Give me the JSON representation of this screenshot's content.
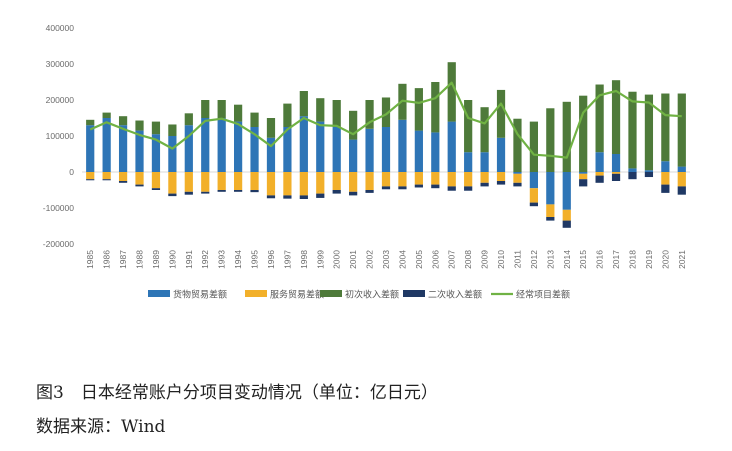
{
  "caption": {
    "title": "图3　日本经常账户分项目变动情况（单位：亿日元）",
    "source": "数据来源：Wind"
  },
  "chart_data": {
    "type": "bar",
    "stacked": true,
    "x": [
      "1985",
      "1986",
      "1987",
      "1988",
      "1989",
      "1990",
      "1991",
      "1992",
      "1993",
      "1994",
      "1995",
      "1996",
      "1997",
      "1998",
      "1999",
      "2000",
      "2001",
      "2002",
      "2003",
      "2004",
      "2005",
      "2006",
      "2007",
      "2008",
      "2009",
      "2010",
      "2011",
      "2012",
      "2013",
      "2014",
      "2015",
      "2016",
      "2017",
      "2018",
      "2019",
      "2020",
      "2021"
    ],
    "ylim": [
      -200000,
      400000
    ],
    "yticks": [
      -200000,
      -100000,
      0,
      100000,
      200000,
      300000,
      400000
    ],
    "ytick_labels": [
      "-200000",
      "-100000",
      "0",
      "100000",
      "200000",
      "300000",
      "400000"
    ],
    "grid": false,
    "legend_position": "bottom",
    "series": [
      {
        "name": "货物贸易差额",
        "kind": "bar",
        "color": "#2E75B6",
        "values": [
          130000,
          150000,
          130000,
          115000,
          105000,
          100000,
          130000,
          150000,
          150000,
          140000,
          125000,
          95000,
          125000,
          155000,
          140000,
          125000,
          90000,
          120000,
          125000,
          145000,
          115000,
          110000,
          140000,
          55000,
          55000,
          95000,
          -5000,
          -45000,
          -90000,
          -105000,
          -5000,
          55000,
          50000,
          10000,
          5000,
          30000,
          15000
        ]
      },
      {
        "name": "服务贸易差额",
        "kind": "bar",
        "color": "#F2B02A",
        "values": [
          -20000,
          -20000,
          -25000,
          -35000,
          -45000,
          -60000,
          -55000,
          -55000,
          -50000,
          -50000,
          -50000,
          -65000,
          -65000,
          -65000,
          -60000,
          -50000,
          -55000,
          -50000,
          -40000,
          -40000,
          -35000,
          -35000,
          -40000,
          -40000,
          -30000,
          -25000,
          -25000,
          -40000,
          -35000,
          -30000,
          -15000,
          -10000,
          -5000,
          0,
          0,
          -35000,
          -40000
        ]
      },
      {
        "name": "初次收入差额",
        "kind": "bar",
        "color": "#4E7A3A",
        "values": [
          15000,
          15000,
          25000,
          28000,
          35000,
          32000,
          33000,
          50000,
          50000,
          47000,
          40000,
          55000,
          65000,
          70000,
          65000,
          75000,
          80000,
          80000,
          82000,
          100000,
          118000,
          140000,
          165000,
          145000,
          125000,
          133000,
          148000,
          140000,
          177000,
          195000,
          212000,
          188000,
          205000,
          213000,
          210000,
          188000,
          203000
        ]
      },
      {
        "name": "二次收入差额",
        "kind": "bar",
        "color": "#1F3864",
        "values": [
          -3000,
          -3000,
          -5000,
          -5000,
          -5000,
          -7000,
          -8000,
          -5000,
          -5000,
          -5000,
          -6000,
          -8000,
          -9000,
          -10000,
          -12000,
          -10000,
          -10000,
          -8000,
          -8000,
          -8000,
          -8000,
          -10000,
          -12000,
          -12000,
          -10000,
          -10000,
          -10000,
          -10000,
          -10000,
          -20000,
          -20000,
          -20000,
          -20000,
          -20000,
          -14000,
          -23000,
          -23000
        ]
      },
      {
        "name": "经常项目差额",
        "kind": "line",
        "color": "#70B244",
        "values": [
          118000,
          138000,
          120000,
          103000,
          90000,
          65000,
          100000,
          142000,
          148000,
          133000,
          105000,
          72000,
          118000,
          150000,
          130000,
          128000,
          105000,
          138000,
          160000,
          198000,
          192000,
          205000,
          248000,
          150000,
          135000,
          190000,
          105000,
          48000,
          45000,
          40000,
          165000,
          213000,
          225000,
          196000,
          193000,
          158000,
          155000
        ]
      }
    ]
  }
}
